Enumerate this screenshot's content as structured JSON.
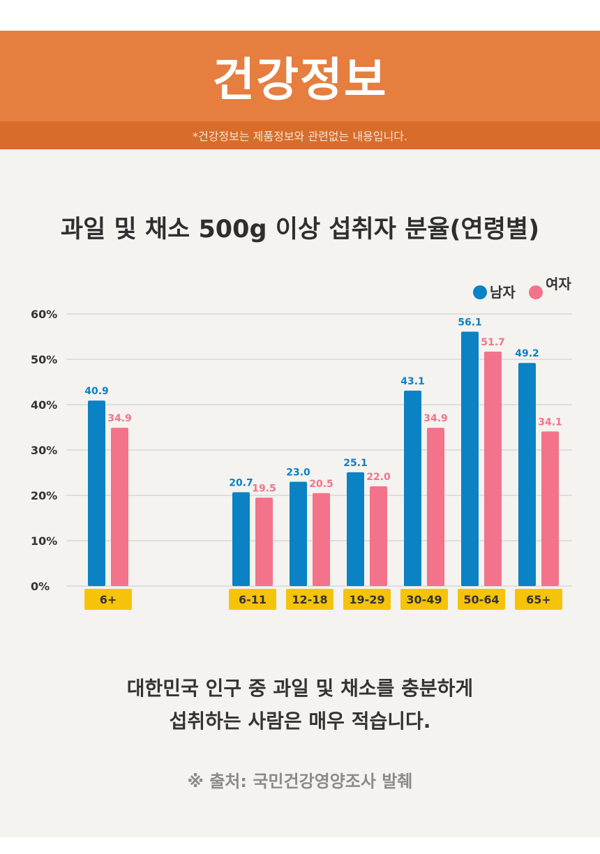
{
  "header": {
    "title": "건강정보",
    "disclaimer": "*건강정보는 제품정보와 관련없는 내용입니다."
  },
  "colors": {
    "header_bg": "#e57e3f",
    "subbar_bg": "#d86c2a",
    "male": "#0a82c4",
    "female": "#f2738a",
    "category_bg": "#f5c30a"
  },
  "chart_data": {
    "type": "bar",
    "title": "과일 및 채소 500g 이상 섭취자 분율(연령별)",
    "categories": [
      "6+",
      "6-11",
      "12-18",
      "19-29",
      "30-49",
      "50-64",
      "65+"
    ],
    "series": [
      {
        "name": "남자",
        "values": [
          40.9,
          20.7,
          23.0,
          25.1,
          43.1,
          56.1,
          49.2
        ],
        "labels": [
          "40.9",
          "20.7",
          "23.0",
          "25.1",
          "43.1",
          "56.1",
          "49.2"
        ]
      },
      {
        "name": "여자",
        "values": [
          34.9,
          19.5,
          20.5,
          22.0,
          34.9,
          51.7,
          34.1
        ],
        "labels": [
          "34.9",
          "19.5",
          "20.5",
          "22.0",
          "34.9",
          "51.7",
          "34.1"
        ]
      }
    ],
    "yticks": [
      "0%",
      "10%",
      "20%",
      "30%",
      "40%",
      "50%",
      "60%"
    ],
    "ylim": [
      0,
      60
    ],
    "grid": true,
    "legend": "top-right"
  },
  "footer": {
    "line1": "대한민국 인구 중 과일 및 채소를 충분하게",
    "line2": "섭취하는 사람은 매우 적습니다.",
    "source": "※ 출처: 국민건강영양조사 발췌"
  }
}
